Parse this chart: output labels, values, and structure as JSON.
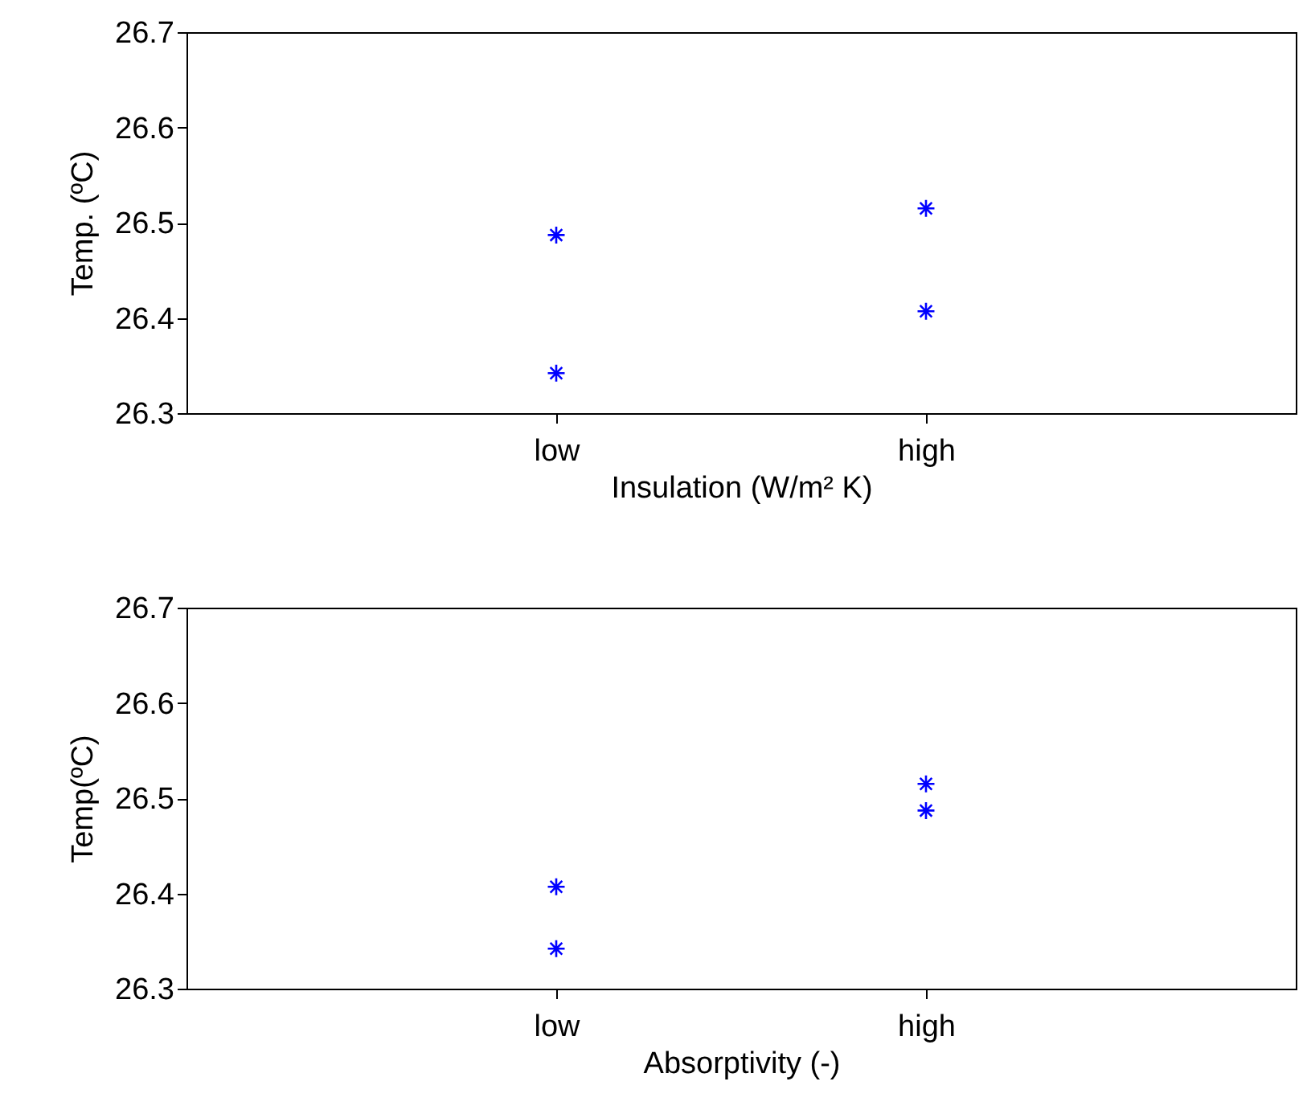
{
  "chart_data": [
    {
      "type": "scatter",
      "xlabel": "Insulation (W/m² K)",
      "ylabel": "Temp. (ºC)",
      "marker": "cross",
      "categories": [
        "low",
        "high"
      ],
      "ylim": [
        26.3,
        26.7
      ],
      "yticks": [
        26.3,
        26.4,
        26.5,
        26.6,
        26.7
      ],
      "series": [
        {
          "color": "#0000ff",
          "values": [
            26.487,
            26.515
          ]
        },
        {
          "color": "#0000ff",
          "values": [
            26.342,
            26.407
          ]
        }
      ]
    },
    {
      "type": "scatter",
      "xlabel": "Absorptivity (-)",
      "ylabel": "Temp(ºC)",
      "marker": "cross",
      "categories": [
        "low",
        "high"
      ],
      "ylim": [
        26.3,
        26.7
      ],
      "yticks": [
        26.3,
        26.4,
        26.5,
        26.6,
        26.7
      ],
      "series": [
        {
          "color": "#0000ff",
          "values": [
            26.407,
            26.515
          ]
        },
        {
          "color": "#0000ff",
          "values": [
            26.342,
            26.487
          ]
        }
      ]
    }
  ]
}
